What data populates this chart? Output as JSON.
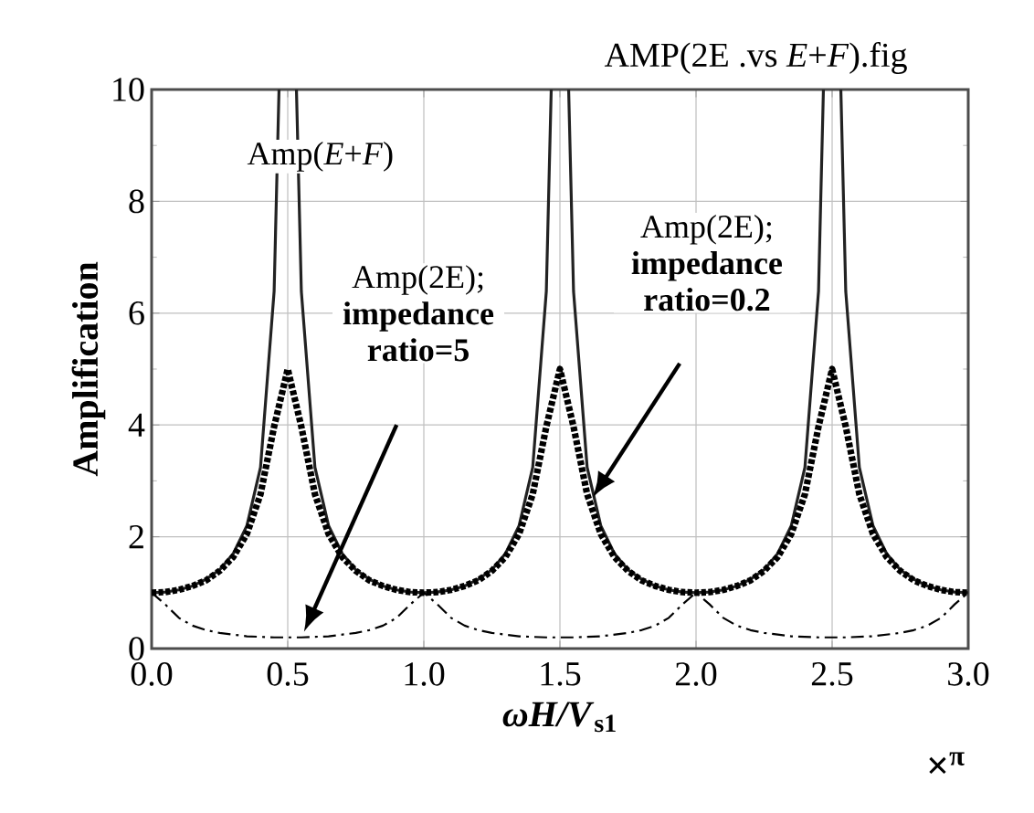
{
  "chart_data": {
    "type": "line",
    "title": "AMP(2E .vs *E*+*F*).fig",
    "xlabel": "*ωH/V*$_{s1}$",
    "ylabel": "Amplification",
    "annotations": [
      "×$^{π}$",
      "Amp(2E); **impedance ratio=5**",
      "Amp(2E); **impedance ratio=0.2**"
    ],
    "xlim": [
      0,
      3
    ],
    "ylim": [
      0,
      10
    ],
    "xticks": [
      {
        "value": 0,
        "label": "0.0"
      },
      {
        "value": 0.5,
        "label": "0.5"
      },
      {
        "value": 1,
        "label": "1.0"
      },
      {
        "value": 1.5,
        "label": "1.5"
      },
      {
        "value": 2,
        "label": "2.0"
      },
      {
        "value": 2.5,
        "label": "2.5"
      },
      {
        "value": 3,
        "label": "3.0"
      }
    ],
    "yticks": [
      0,
      2,
      4,
      6,
      8,
      10
    ],
    "grid": true,
    "legend": false,
    "marker": "none",
    "series": [
      {
        "name": "Amp(*E*+*F*)",
        "color": "#222222",
        "line_style": "solid",
        "x": [
          0,
          0.05,
          0.1,
          0.15,
          0.2,
          0.25,
          0.3,
          0.35,
          0.4,
          0.45,
          0.468,
          0.5,
          0.532,
          0.55,
          0.6,
          0.65,
          0.7,
          0.75,
          0.8,
          0.85,
          0.9,
          0.95,
          1,
          1.05,
          1.1,
          1.15,
          1.2,
          1.25,
          1.3,
          1.35,
          1.4,
          1.45,
          1.468,
          1.5,
          1.532,
          1.55,
          1.6,
          1.65,
          1.7,
          1.75,
          1.8,
          1.85,
          1.9,
          1.95,
          2,
          2.05,
          2.1,
          2.15,
          2.2,
          2.25,
          2.3,
          2.35,
          2.4,
          2.45,
          2.468,
          2.5,
          2.532,
          2.55,
          2.6,
          2.65,
          2.7,
          2.75,
          2.8,
          2.85,
          2.9,
          2.95,
          3
        ],
        "values": [
          1,
          1.01,
          1.05,
          1.12,
          1.24,
          1.41,
          1.7,
          2.2,
          3.24,
          6.39,
          10,
          null,
          10,
          6.39,
          3.24,
          2.2,
          1.7,
          1.41,
          1.24,
          1.12,
          1.05,
          1.01,
          1,
          1.01,
          1.05,
          1.12,
          1.24,
          1.41,
          1.7,
          2.2,
          3.24,
          6.39,
          10,
          null,
          10,
          6.39,
          3.24,
          2.2,
          1.7,
          1.41,
          1.24,
          1.12,
          1.05,
          1.01,
          1,
          1.01,
          1.05,
          1.12,
          1.24,
          1.41,
          1.7,
          2.2,
          3.24,
          6.39,
          10,
          null,
          10,
          6.39,
          3.24,
          2.2,
          1.7,
          1.41,
          1.24,
          1.12,
          1.05,
          1.01,
          1
        ]
      },
      {
        "color": "#000000",
        "line_style": "dashed",
        "x": [
          0,
          0.05,
          0.1,
          0.15,
          0.2,
          0.25,
          0.3,
          0.35,
          0.4,
          0.45,
          0.5,
          0.55,
          0.6,
          0.65,
          0.7,
          0.75,
          0.8,
          0.85,
          0.9,
          0.95,
          1,
          1.05,
          1.1,
          1.15,
          1.2,
          1.25,
          1.3,
          1.35,
          1.4,
          1.45,
          1.5,
          1.55,
          1.6,
          1.65,
          1.7,
          1.75,
          1.8,
          1.85,
          1.9,
          1.95,
          2,
          2.05,
          2.1,
          2.15,
          2.2,
          2.25,
          2.3,
          2.35,
          2.4,
          2.45,
          2.5,
          2.55,
          2.6,
          2.65,
          2.7,
          2.75,
          2.8,
          2.85,
          2.9,
          2.95,
          3
        ],
        "values": [
          1,
          0.79,
          0.55,
          0.41,
          0.33,
          0.28,
          0.25,
          0.22,
          0.21,
          0.2,
          0.2,
          0.2,
          0.21,
          0.22,
          0.25,
          0.28,
          0.33,
          0.41,
          0.55,
          0.79,
          1,
          0.79,
          0.55,
          0.41,
          0.33,
          0.28,
          0.25,
          0.22,
          0.21,
          0.2,
          0.2,
          0.2,
          0.21,
          0.22,
          0.25,
          0.28,
          0.33,
          0.41,
          0.55,
          0.79,
          1,
          0.79,
          0.55,
          0.41,
          0.33,
          0.28,
          0.25,
          0.22,
          0.21,
          0.2,
          0.2,
          0.2,
          0.21,
          0.22,
          0.25,
          0.28,
          0.33,
          0.41,
          0.55,
          0.79,
          1
        ]
      },
      {
        "color": "#000000",
        "line_style": "dashed",
        "x": [
          0,
          0.05,
          0.1,
          0.15,
          0.2,
          0.25,
          0.3,
          0.35,
          0.4,
          0.45,
          0.5,
          0.55,
          0.6,
          0.65,
          0.7,
          0.75,
          0.8,
          0.85,
          0.9,
          0.95,
          1,
          1.05,
          1.1,
          1.15,
          1.2,
          1.25,
          1.3,
          1.35,
          1.4,
          1.45,
          1.5,
          1.55,
          1.6,
          1.65,
          1.7,
          1.75,
          1.8,
          1.85,
          1.9,
          1.95,
          2,
          2.05,
          2.1,
          2.15,
          2.2,
          2.25,
          2.3,
          2.35,
          2.4,
          2.45,
          2.5,
          2.55,
          2.6,
          2.65,
          2.7,
          2.75,
          2.8,
          2.85,
          2.9,
          2.95,
          3
        ],
        "values": [
          1,
          1.01,
          1.05,
          1.12,
          1.22,
          1.39,
          1.64,
          2.05,
          2.76,
          3.97,
          5,
          3.97,
          2.76,
          2.05,
          1.64,
          1.39,
          1.22,
          1.12,
          1.05,
          1.01,
          1,
          1.01,
          1.05,
          1.12,
          1.22,
          1.39,
          1.64,
          2.05,
          2.76,
          3.97,
          5,
          3.97,
          2.76,
          2.05,
          1.64,
          1.39,
          1.22,
          1.12,
          1.05,
          1.01,
          1,
          1.01,
          1.05,
          1.12,
          1.22,
          1.39,
          1.64,
          2.05,
          2.76,
          3.97,
          5,
          3.97,
          2.76,
          2.05,
          1.64,
          1.39,
          1.22,
          1.12,
          1.05,
          1.01,
          1
        ]
      }
    ]
  }
}
